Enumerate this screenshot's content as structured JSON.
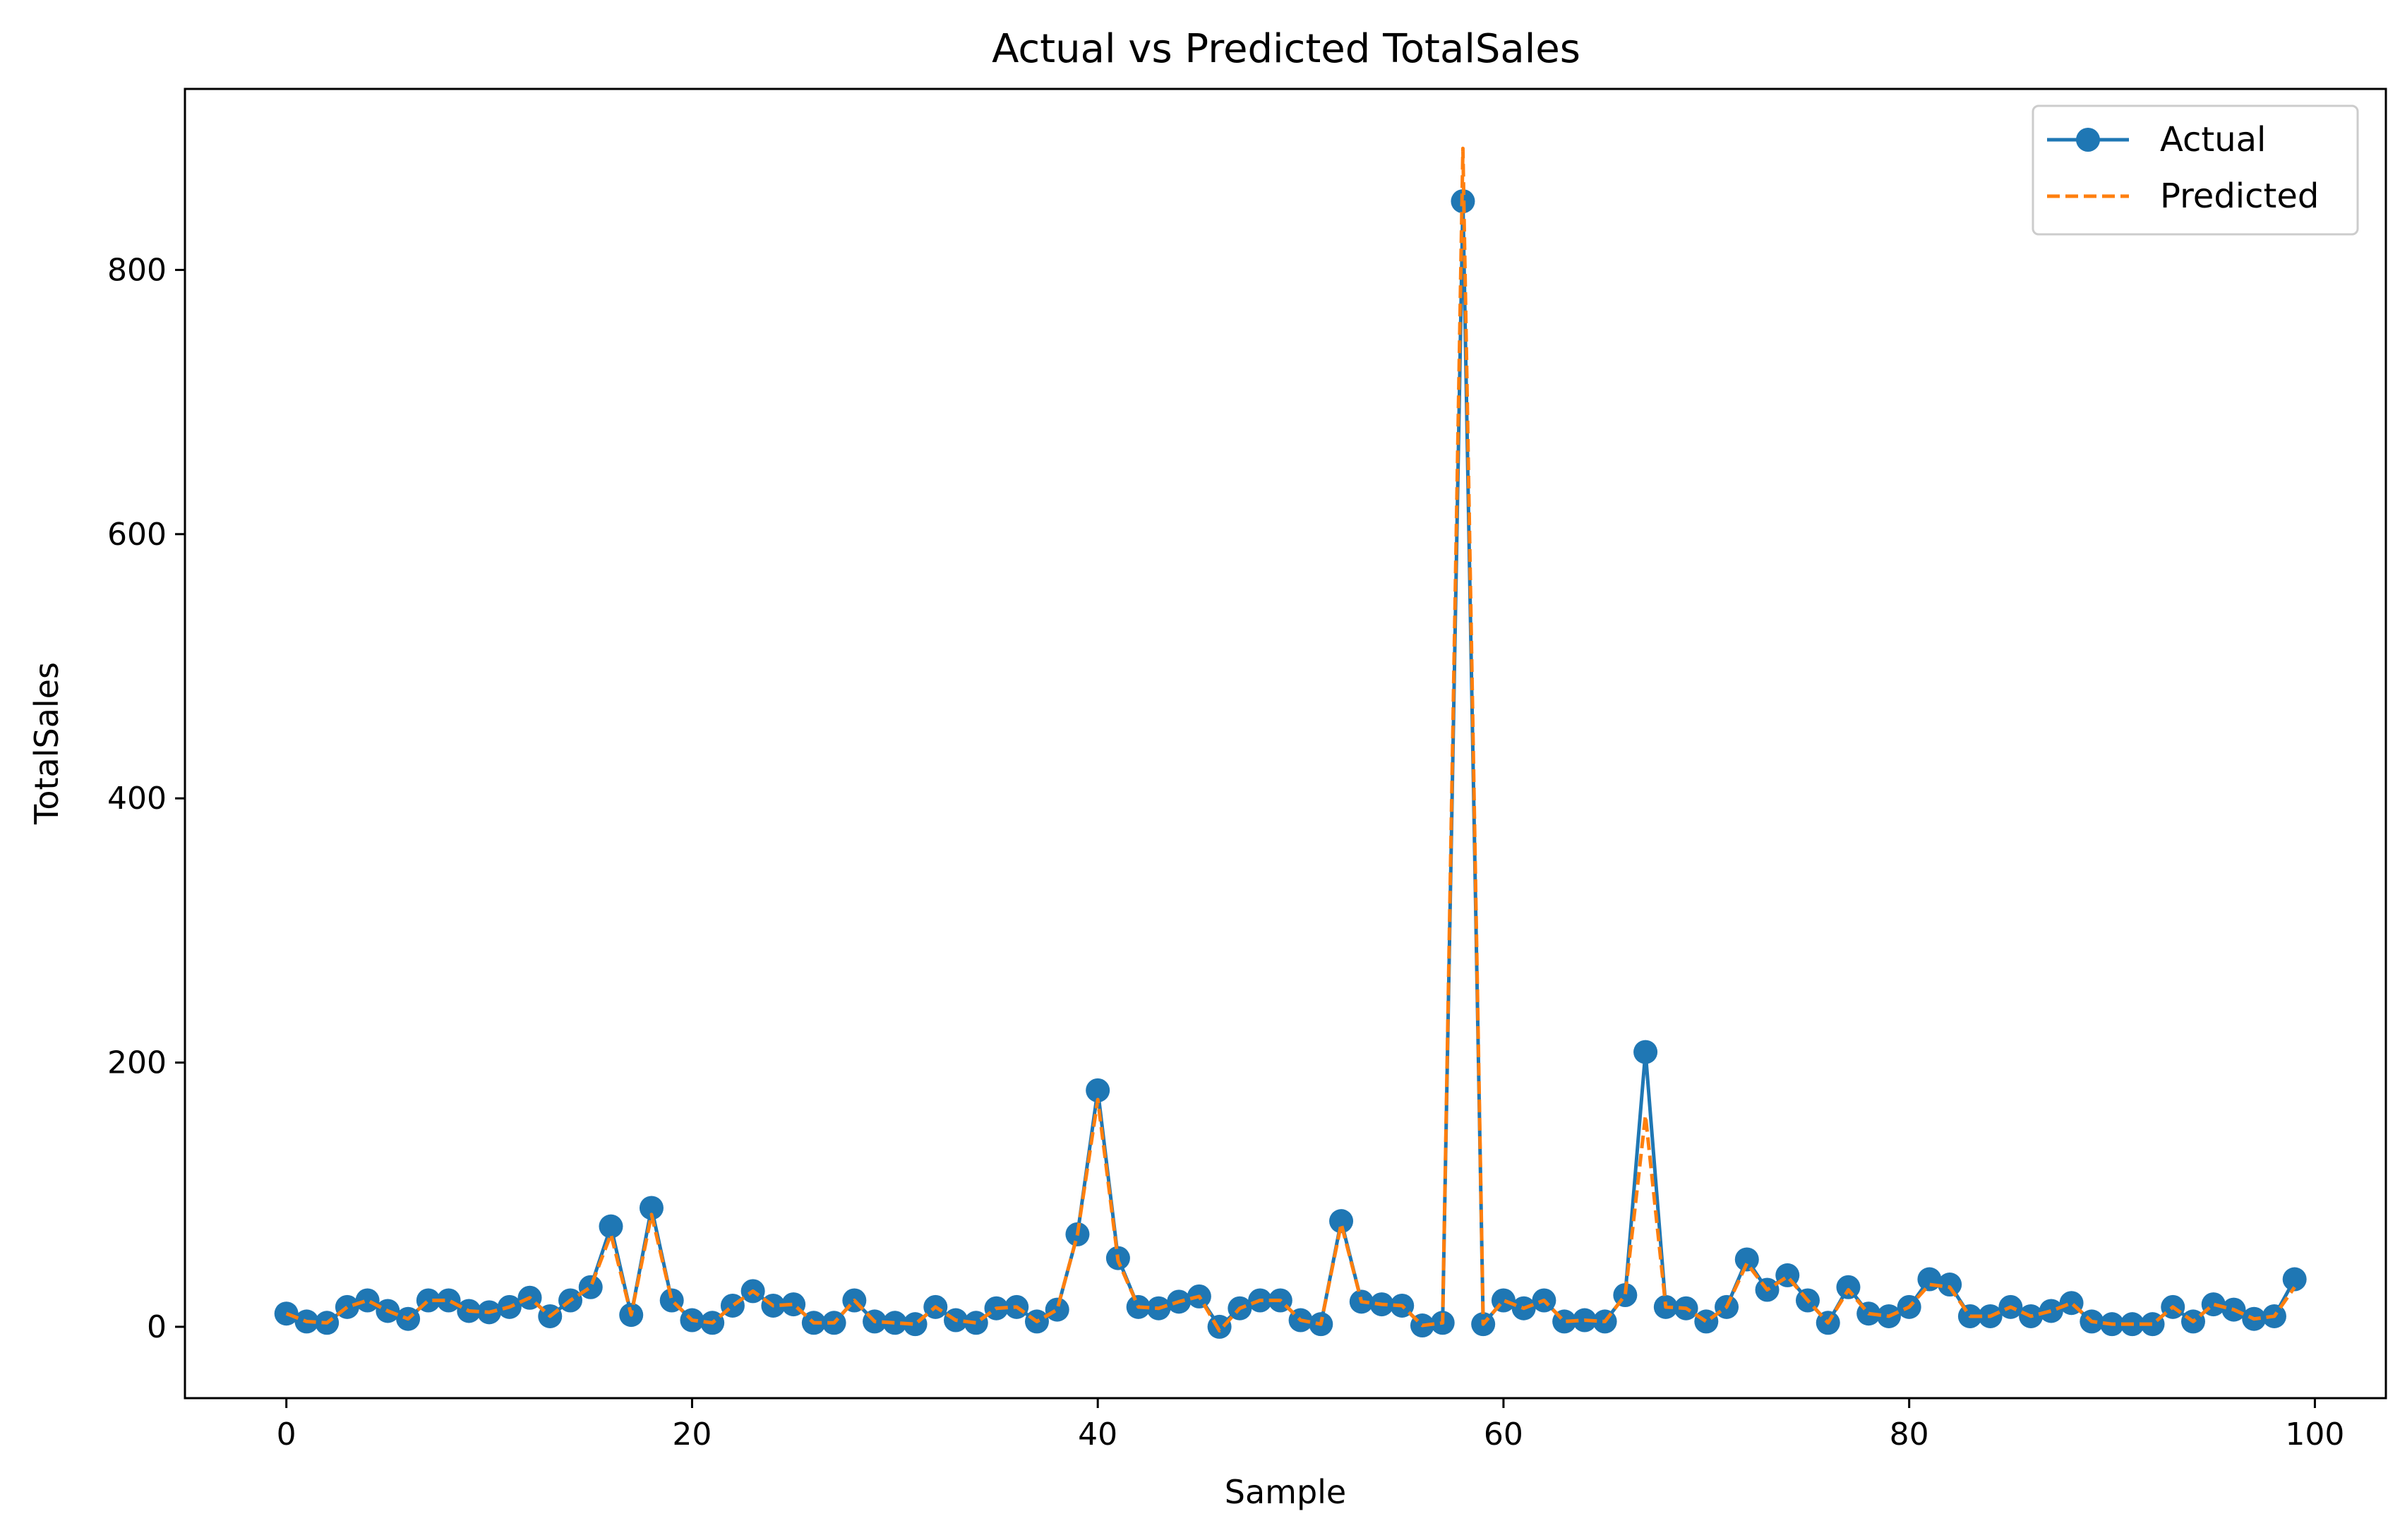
{
  "chart_data": {
    "type": "line",
    "title": "Actual vs Predicted TotalSales",
    "xlabel": "Sample",
    "ylabel": "TotalSales",
    "xlim": [
      -5,
      103.5
    ],
    "ylim": [
      -54,
      937
    ],
    "xticks": [
      0,
      20,
      40,
      60,
      80,
      100
    ],
    "yticks": [
      0,
      200,
      400,
      600,
      800
    ],
    "grid": false,
    "legend_position": "top-right",
    "x": [
      0,
      1,
      2,
      3,
      4,
      5,
      6,
      7,
      8,
      9,
      10,
      11,
      12,
      13,
      14,
      15,
      16,
      17,
      18,
      19,
      20,
      21,
      22,
      23,
      24,
      25,
      26,
      27,
      28,
      29,
      30,
      31,
      32,
      33,
      34,
      35,
      36,
      37,
      38,
      39,
      40,
      41,
      42,
      43,
      44,
      45,
      46,
      47,
      48,
      49,
      50,
      51,
      52,
      53,
      54,
      55,
      56,
      57,
      58,
      59,
      60,
      61,
      62,
      63,
      64,
      65,
      66,
      67,
      68,
      69,
      70,
      71,
      72,
      73,
      74,
      75,
      76,
      77,
      78,
      79,
      80,
      81,
      82,
      83,
      84,
      85,
      86,
      87,
      88,
      89,
      90,
      91,
      92,
      93,
      94,
      95,
      96,
      97,
      98,
      99
    ],
    "series": [
      {
        "name": "Actual",
        "color": "#1f77b4",
        "style": "solid-marker",
        "values": [
          10,
          4,
          3,
          15,
          20,
          12,
          6,
          20,
          20,
          12,
          11,
          15,
          22,
          8,
          20,
          30,
          76,
          9,
          90,
          20,
          5,
          3,
          16,
          27,
          16,
          17,
          3,
          3,
          20,
          4,
          3,
          2,
          15,
          5,
          3,
          14,
          15,
          4,
          13,
          70,
          179,
          52,
          15,
          14,
          19,
          23,
          0,
          14,
          20,
          20,
          5,
          2,
          80,
          19,
          17,
          16,
          1,
          3,
          852,
          2,
          20,
          14,
          20,
          4,
          5,
          4,
          24,
          208,
          15,
          14,
          4,
          15,
          51,
          28,
          39,
          20,
          3,
          30,
          10,
          8,
          15,
          36,
          32,
          8,
          8,
          15,
          8,
          12,
          18,
          4,
          2,
          2,
          2,
          15,
          4,
          17,
          13,
          6,
          8,
          36
        ]
      },
      {
        "name": "Predicted",
        "color": "#ff7f0e",
        "style": "dashed",
        "values": [
          10,
          4,
          3,
          15,
          20,
          12,
          6,
          20,
          20,
          12,
          11,
          15,
          22,
          8,
          20,
          30,
          70,
          9,
          85,
          20,
          5,
          3,
          16,
          27,
          16,
          17,
          3,
          3,
          20,
          4,
          3,
          2,
          15,
          5,
          3,
          14,
          15,
          4,
          13,
          70,
          172,
          50,
          15,
          14,
          19,
          23,
          -3,
          14,
          20,
          20,
          5,
          2,
          78,
          19,
          17,
          16,
          1,
          3,
          892,
          2,
          20,
          14,
          20,
          4,
          5,
          4,
          24,
          160,
          15,
          14,
          4,
          15,
          48,
          28,
          38,
          20,
          3,
          28,
          10,
          8,
          15,
          32,
          30,
          8,
          8,
          15,
          8,
          12,
          18,
          4,
          2,
          2,
          2,
          15,
          4,
          17,
          13,
          6,
          8,
          30
        ]
      }
    ]
  }
}
